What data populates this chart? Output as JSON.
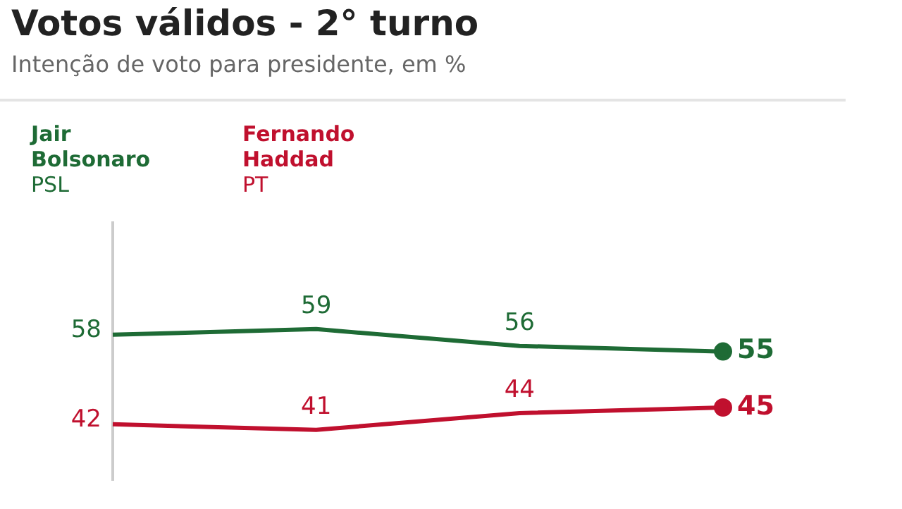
{
  "chart_data": {
    "type": "line",
    "title": "Votos válidos - 2° turno",
    "subtitle": "Intenção de voto para presidente, em %",
    "categories": [
      null,
      null,
      null,
      null
    ],
    "series": [
      {
        "name": "Jair Bolsonaro\nPSL",
        "color": "#1e6b35",
        "values": [
          58,
          59,
          56,
          55
        ]
      },
      {
        "name": "Fernando Haddad\nPT",
        "color": "#c0102e",
        "values": [
          42,
          41,
          44,
          45
        ]
      }
    ],
    "ylim": [
      32,
      78
    ],
    "data_labels": true,
    "legend": "top left",
    "grid": false,
    "line_style": "solid"
  }
}
